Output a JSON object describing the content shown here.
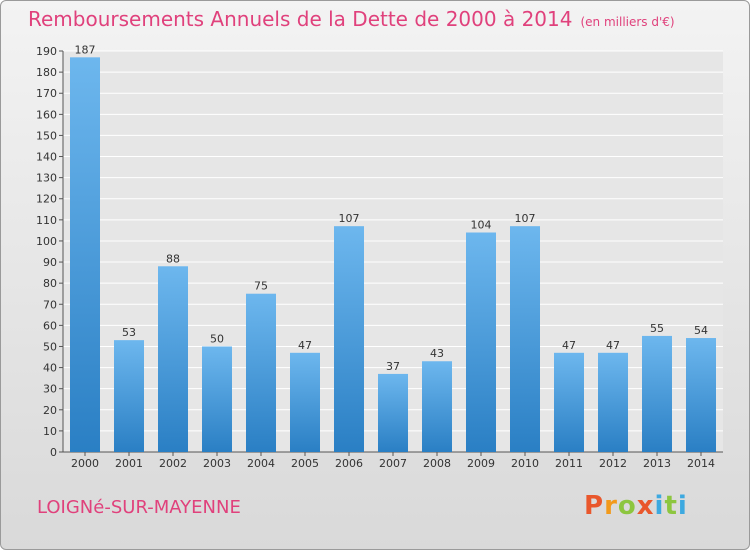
{
  "header": {
    "title": "Remboursements Annuels de la Dette de 2000 à 2014",
    "unit": "(en milliers d'€)"
  },
  "footer": {
    "commune": "LOIGNé-SUR-MAYENNE",
    "logo": "Proxiti"
  },
  "colors": {
    "title": "#e0417c",
    "bar_top": "#6db7ee",
    "bar_bottom": "#2a7fc4",
    "logo_letters": [
      "#e9572c",
      "#f29a1b",
      "#8dc63f",
      "#e9572c",
      "#3da9e0",
      "#8dc63f",
      "#3da9e0"
    ]
  },
  "chart_data": {
    "type": "bar",
    "title": "Remboursements Annuels de la Dette de 2000 à 2014",
    "xlabel": "",
    "ylabel": "",
    "categories": [
      "2000",
      "2001",
      "2002",
      "2003",
      "2004",
      "2005",
      "2006",
      "2007",
      "2008",
      "2009",
      "2010",
      "2011",
      "2012",
      "2013",
      "2014"
    ],
    "values": [
      187,
      53,
      88,
      50,
      75,
      47,
      107,
      37,
      43,
      104,
      107,
      47,
      47,
      55,
      54
    ],
    "ylim": [
      0,
      190
    ],
    "yticks": [
      0,
      10,
      20,
      30,
      40,
      50,
      60,
      70,
      80,
      90,
      100,
      110,
      120,
      130,
      140,
      150,
      160,
      170,
      180,
      190
    ],
    "grid": true,
    "legend": "none"
  }
}
